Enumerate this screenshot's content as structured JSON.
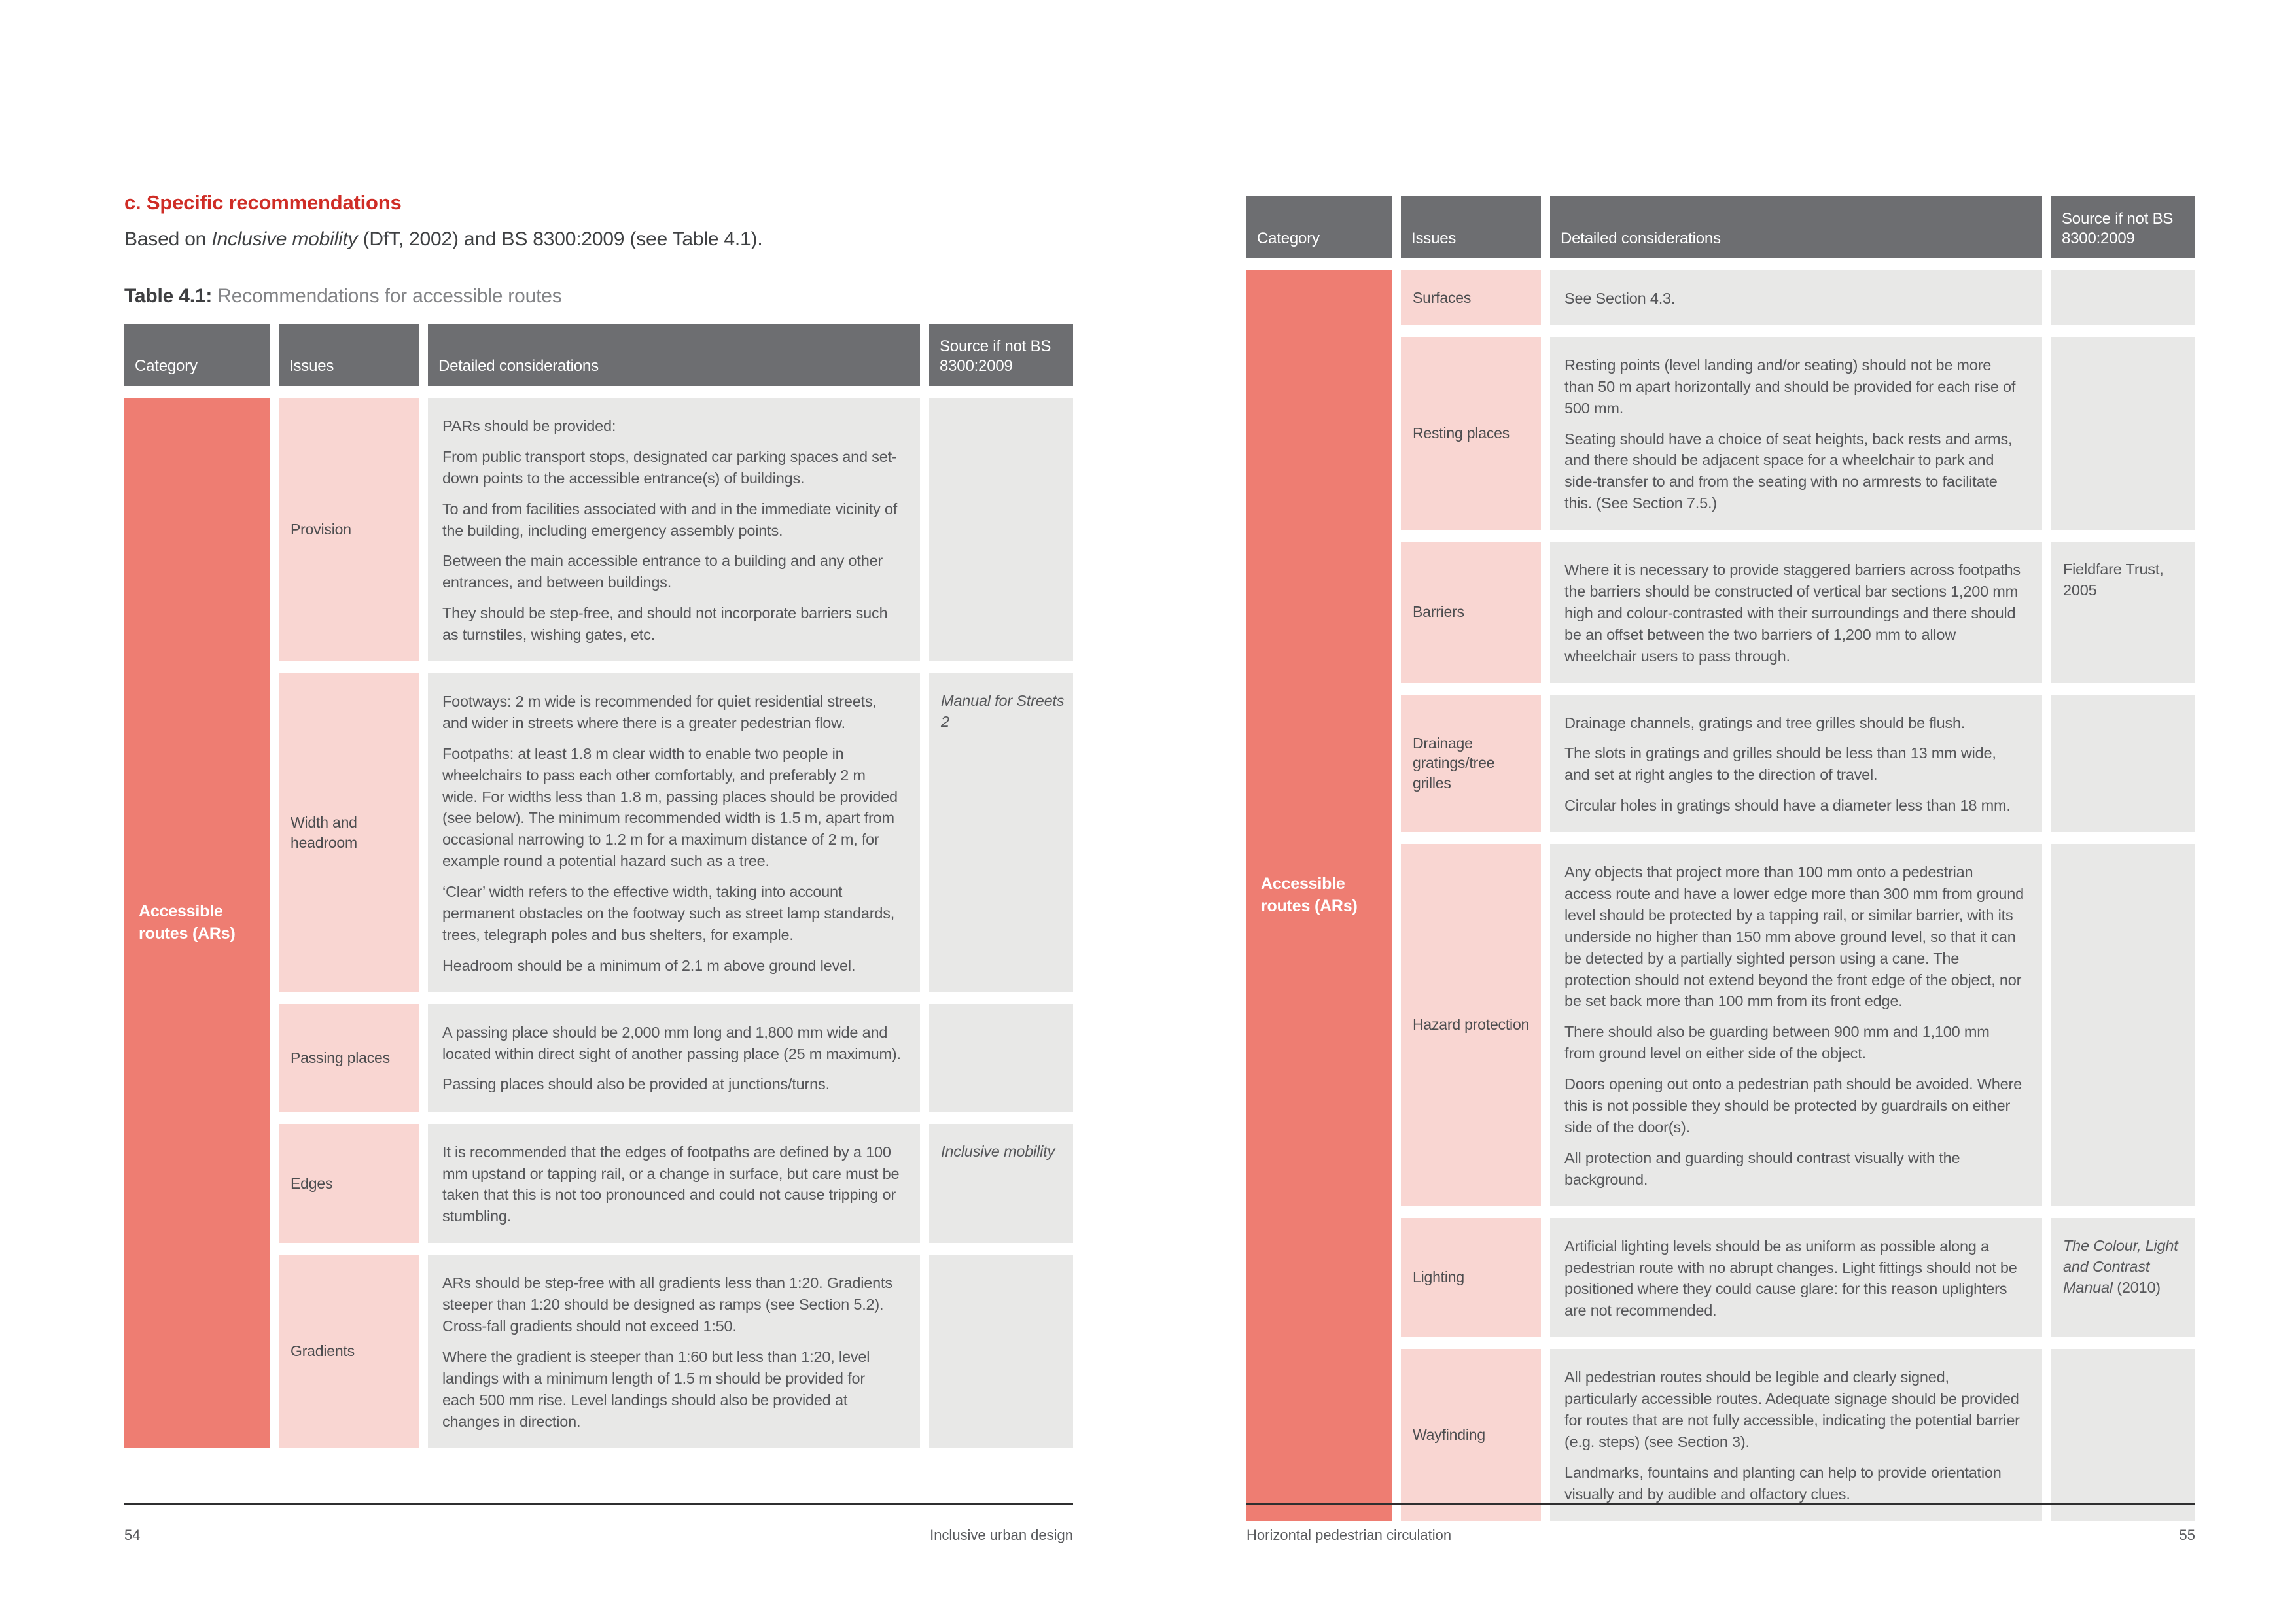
{
  "colors": {
    "header_bg": "#6d6e71",
    "category_bg": "#ee7d72",
    "issues_bg": "#f9d6d2",
    "cell_bg": "#e8e8e7",
    "accent_red": "#cf2d26"
  },
  "pages": {
    "left": {
      "heading": "c. Specific recommendations",
      "intro": {
        "prefix": "Based on ",
        "italic": "Inclusive mobility",
        "suffix": " (DfT, 2002) and BS 8300:2009 (see Table 4.1)."
      },
      "caption": {
        "bold": "Table 4.1:",
        "rest": " Recommendations for accessible routes"
      },
      "footer": {
        "page_number": "54",
        "label": "Inclusive urban design"
      }
    },
    "right": {
      "footer": {
        "page_number": "55",
        "label": "Horizontal pedestrian circulation"
      }
    }
  },
  "table_headers": {
    "category": "Category",
    "issues": "Issues",
    "details": "Detailed considerations",
    "source": "Source if not BS 8300:2009"
  },
  "tables": {
    "left": {
      "category": "Accessible routes (ARs)",
      "rows": [
        {
          "issue": "Provision",
          "paragraphs": [
            "PARs should be provided:",
            "From public transport stops, designated car parking spaces and set-down points to the accessible entrance(s) of buildings.",
            "To and from facilities associated with and in the immediate vicinity of the building, including emergency assembly points.",
            "Between the main accessible entrance to a building and any other entrances, and between buildings.",
            "They should be step-free, and should not incorporate barriers such as turnstiles, wishing gates, etc."
          ],
          "source": []
        },
        {
          "issue": "Width and headroom",
          "paragraphs": [
            "Footways: 2 m wide is recommended for quiet residential streets, and wider in streets where there is a greater pedestrian flow.",
            "Footpaths: at least 1.8 m clear width to enable two people in wheelchairs to pass each other comfortably, and preferably 2 m wide. For widths less than 1.8 m, passing places should be provided (see below). The minimum recommended width is 1.5 m, apart from occasional narrowing to 1.2 m for a maximum distance of 2 m, for example round a potential hazard such as a tree.",
            "‘Clear’ width refers to the effective width, taking into account permanent obstacles on the footway such as street lamp standards, trees, telegraph poles and bus shelters, for example.",
            "Headroom should be a minimum of 2.1 m above ground level."
          ],
          "source": [
            {
              "text": "Manual for Streets 2",
              "italic": true
            }
          ]
        },
        {
          "issue": "Passing places",
          "paragraphs": [
            "A passing place should be 2,000 mm long and 1,800 mm wide and located within direct sight of another passing place (25 m maximum).",
            "Passing places should also be provided at junctions/turns."
          ],
          "source": []
        },
        {
          "issue": "Edges",
          "paragraphs": [
            "It is recommended that the edges of footpaths are defined by a 100 mm upstand or tapping rail, or a change in surface, but care must be taken that this is not too pronounced and could not cause tripping or stumbling."
          ],
          "source": [
            {
              "text": "Inclusive mobility",
              "italic": true
            }
          ]
        },
        {
          "issue": "Gradients",
          "paragraphs": [
            "ARs should be step-free with all gradients less than 1:20. Gradients steeper than 1:20 should be designed as ramps (see Section 5.2). Cross-fall gradients should not exceed 1:50.",
            "Where the gradient is steeper than 1:60 but less than 1:20, level landings with a minimum length of 1.5 m should be provided for each 500 mm rise. Level landings should also be provided at changes in direction."
          ],
          "source": []
        }
      ]
    },
    "right": {
      "category": "Accessible routes (ARs)",
      "rows": [
        {
          "issue": "Surfaces",
          "paragraphs": [
            "See Section 4.3."
          ],
          "source": []
        },
        {
          "issue": "Resting places",
          "paragraphs": [
            "Resting points (level landing and/or seating) should not be more than 50 m apart horizontally and should be provided for each rise of 500 mm.",
            "Seating should have a choice of seat heights, back rests and arms, and there should be adjacent space for a wheelchair to park and side-transfer to and from the seating with no armrests to facilitate this. (See Section 7.5.)"
          ],
          "source": []
        },
        {
          "issue": "Barriers",
          "paragraphs": [
            "Where it is necessary to provide staggered barriers across footpaths the barriers should be constructed of vertical bar sections 1,200 mm high and colour-contrasted with their surroundings and there should be an offset between the two barriers of 1,200 mm to allow wheelchair users to pass through."
          ],
          "source": [
            {
              "text": "Fieldfare Trust, 2005",
              "italic": false
            }
          ]
        },
        {
          "issue": "Drainage gratings/tree grilles",
          "paragraphs": [
            "Drainage channels, gratings and tree grilles should be flush.",
            "The slots in gratings and grilles should be less than 13 mm wide, and set at right angles to the direction of travel.",
            "Circular holes in gratings should have a diameter less than 18 mm."
          ],
          "source": []
        },
        {
          "issue": "Hazard protection",
          "paragraphs": [
            "Any objects that project more than 100 mm onto a pedestrian access route and have a lower edge more than 300 mm from ground level should be protected by a tapping rail, or similar barrier, with its underside no higher than 150 mm above ground level, so that it can be detected by a partially sighted person using a cane. The protection should not extend beyond the front edge of the object, nor be set back more than 100 mm from its front edge.",
            "There should also be guarding between 900 mm and 1,100 mm from ground level on either side of the object.",
            "Doors opening out onto a pedestrian path should be avoided. Where this is not possible they should be protected by guardrails on either side of the door(s).",
            "All protection and guarding should contrast visually with the background."
          ],
          "source": []
        },
        {
          "issue": "Lighting",
          "paragraphs": [
            "Artificial lighting levels should be as uniform as possible along a pedestrian route with no abrupt changes. Light fittings should not be positioned where they could cause glare: for this reason uplighters are not recommended."
          ],
          "source": [
            {
              "text": "The Colour, Light and Contrast Manual",
              "italic": true
            },
            {
              "text": " (2010)",
              "italic": false
            }
          ]
        },
        {
          "issue": "Wayfinding",
          "paragraphs": [
            "All pedestrian routes should be legible and clearly signed, particularly accessible routes. Adequate signage should be provided for routes that are not fully accessible, indicating the potential barrier (e.g. steps) (see Section 3).",
            "Landmarks, fountains and planting can help to provide orientation visually and by audible and olfactory clues."
          ],
          "source": []
        }
      ]
    }
  }
}
